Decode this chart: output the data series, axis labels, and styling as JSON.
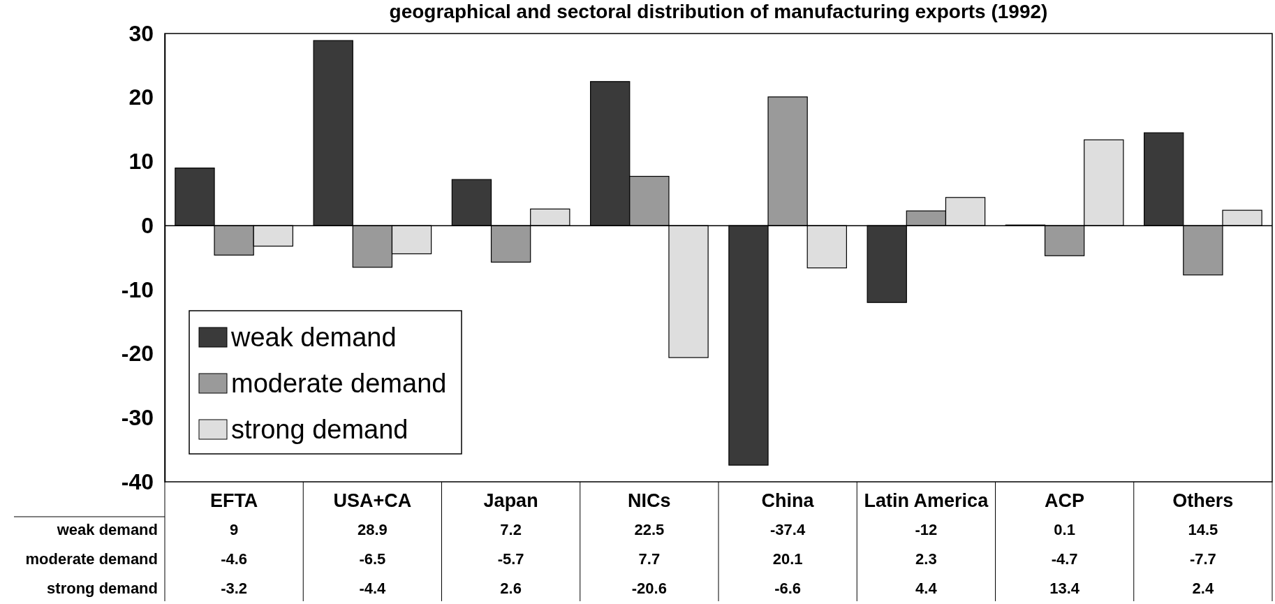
{
  "chart_data": {
    "type": "bar",
    "title": "geographical and sectoral distribution of manufacturing exports (1992)",
    "categories": [
      "EFTA",
      "USA+CA",
      "Japan",
      "NICs",
      "China",
      "Latin America",
      "ACP",
      "Others"
    ],
    "series": [
      {
        "name": "weak demand",
        "color": "#3a3a3a",
        "values": [
          9,
          28.9,
          7.2,
          22.5,
          -37.4,
          -12,
          0.1,
          14.5
        ]
      },
      {
        "name": "moderate demand",
        "color": "#9a9a9a",
        "values": [
          -4.6,
          -6.5,
          -5.7,
          7.7,
          20.1,
          2.3,
          -4.7,
          -7.7
        ]
      },
      {
        "name": "strong demand",
        "color": "#dedede",
        "values": [
          -3.2,
          -4.4,
          2.6,
          -20.6,
          -6.6,
          4.4,
          13.4,
          2.4
        ]
      }
    ],
    "ylim": [
      -40,
      30
    ],
    "yticks": [
      -40,
      -30,
      -20,
      -10,
      0,
      10,
      20,
      30
    ],
    "data_labels": true,
    "legend": "bottom left"
  }
}
